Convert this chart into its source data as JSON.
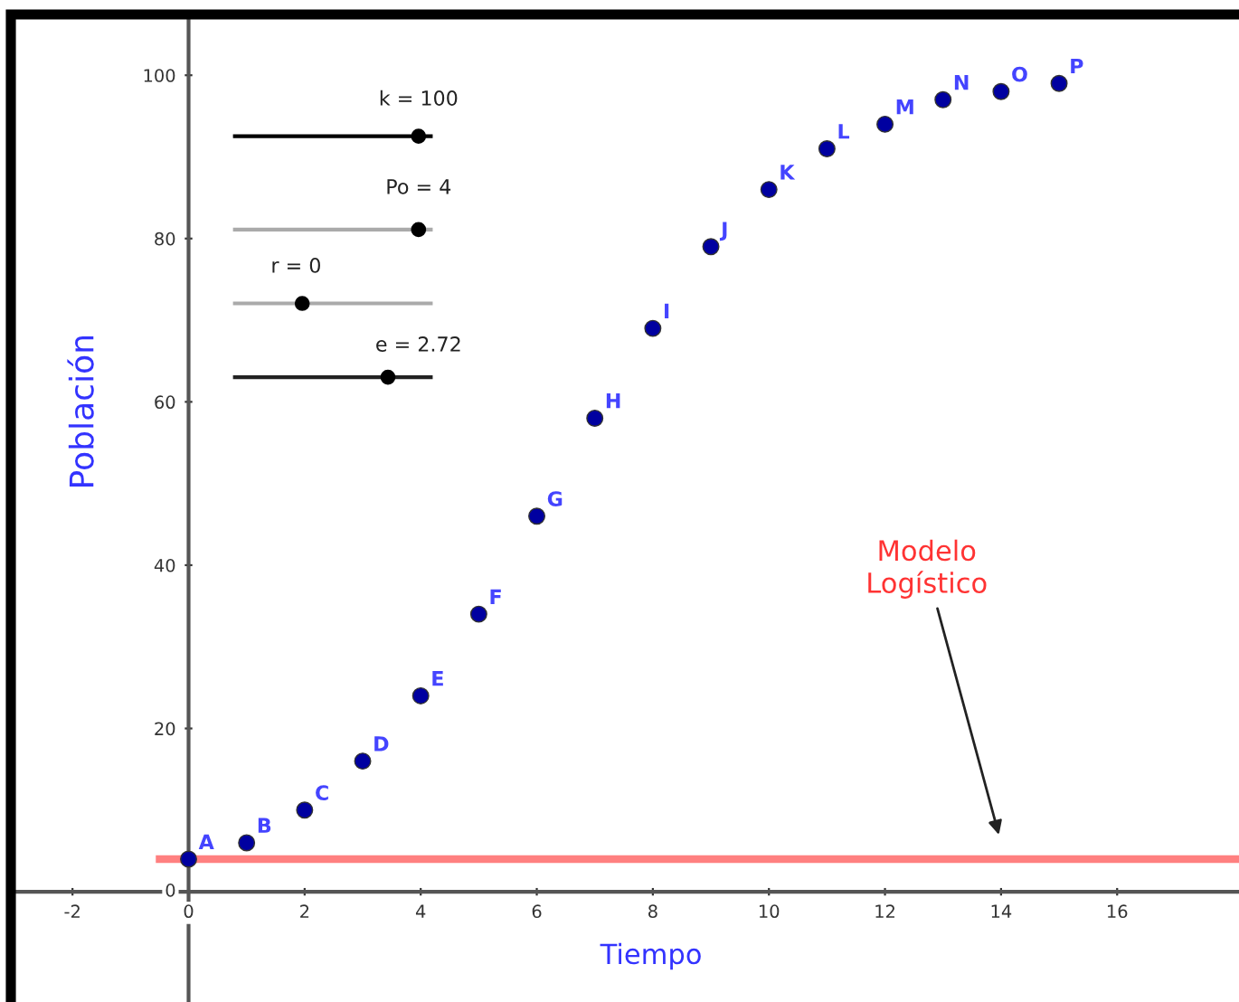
{
  "chart_data": {
    "type": "scatter",
    "xlabel": "Tiempo",
    "ylabel": "Población",
    "x": [
      0,
      1,
      2,
      3,
      4,
      5,
      6,
      7,
      8,
      9,
      10,
      11,
      12,
      13,
      14,
      15
    ],
    "series": [
      {
        "color": "#0000a0",
        "marker": "circle",
        "values": [
          4,
          6,
          10,
          16,
          24,
          34,
          46,
          58,
          69,
          79,
          86,
          91,
          94,
          97,
          98,
          99
        ]
      },
      {
        "type": "line",
        "color": "#ff8080",
        "x": [
          -0.5,
          18.1
        ],
        "values": [
          4,
          4
        ]
      }
    ],
    "annotations": [
      {
        "text": "A",
        "x": 0,
        "y": 4
      },
      {
        "text": "B",
        "x": 1,
        "y": 6
      },
      {
        "text": "C",
        "x": 2,
        "y": 10
      },
      {
        "text": "D",
        "x": 3,
        "y": 16
      },
      {
        "text": "E",
        "x": 4,
        "y": 24
      },
      {
        "text": "F",
        "x": 5,
        "y": 34
      },
      {
        "text": "G",
        "x": 6,
        "y": 46
      },
      {
        "text": "H",
        "x": 7,
        "y": 58
      },
      {
        "text": "I",
        "x": 8,
        "y": 69
      },
      {
        "text": "J",
        "x": 9,
        "y": 79
      },
      {
        "text": "K",
        "x": 10,
        "y": 86
      },
      {
        "text": "L",
        "x": 11,
        "y": 91
      },
      {
        "text": "M",
        "x": 12,
        "y": 94
      },
      {
        "text": "N",
        "x": 13,
        "y": 97
      },
      {
        "text": "O",
        "x": 14,
        "y": 98
      },
      {
        "text": "P",
        "x": 15,
        "y": 99
      },
      "k = 100",
      "Po = 4",
      "r = 0",
      "e = 2.72",
      "Modelo\nLogístico"
    ],
    "xlim": [
      -3,
      18.1
    ],
    "ylim": [
      -13.5,
      107
    ],
    "xticks": [
      -2,
      0,
      2,
      4,
      6,
      8,
      10,
      12,
      14,
      16
    ],
    "yticks": [
      0,
      20,
      40,
      60,
      80,
      100
    ],
    "grid": false
  }
}
